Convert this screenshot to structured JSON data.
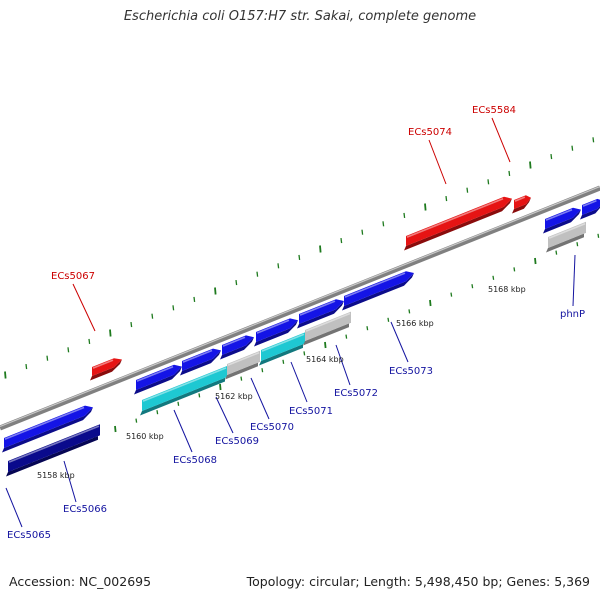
{
  "title": "Escherichia coli O157:H7 str. Sakai, complete genome",
  "footer": {
    "accession": "Accession: NC_002695",
    "summary": "Topology: circular; Length: 5,498,450 bp; Genes: 5,369"
  },
  "colors": {
    "forward_gene": "#1414e6",
    "forward_gene_dark": "#0a0a8c",
    "reverse_gene": "#e61414",
    "cds_cyan": "#1ec8d2",
    "pseudo_grey": "#c0c0c0",
    "backbone": "#808080",
    "tick_green": "#1e7a1e",
    "label_blue": "#1414a0",
    "label_red": "#cc0000"
  },
  "scale_labels": [
    "5158 kbp",
    "5160 kbp",
    "5162 kbp",
    "5164 kbp",
    "5166 kbp",
    "5168 kbp"
  ],
  "genes": [
    {
      "name": "ECs5065",
      "strand": "forward"
    },
    {
      "name": "ECs5066",
      "strand": "forward"
    },
    {
      "name": "ECs5067",
      "strand": "reverse"
    },
    {
      "name": "ECs5068",
      "strand": "forward"
    },
    {
      "name": "ECs5069",
      "strand": "forward"
    },
    {
      "name": "ECs5070",
      "strand": "forward"
    },
    {
      "name": "ECs5071",
      "strand": "forward"
    },
    {
      "name": "ECs5072",
      "strand": "forward"
    },
    {
      "name": "ECs5073",
      "strand": "forward"
    },
    {
      "name": "ECs5074",
      "strand": "reverse"
    },
    {
      "name": "ECs5584",
      "strand": "reverse"
    },
    {
      "name": "phnP",
      "strand": "forward"
    }
  ]
}
